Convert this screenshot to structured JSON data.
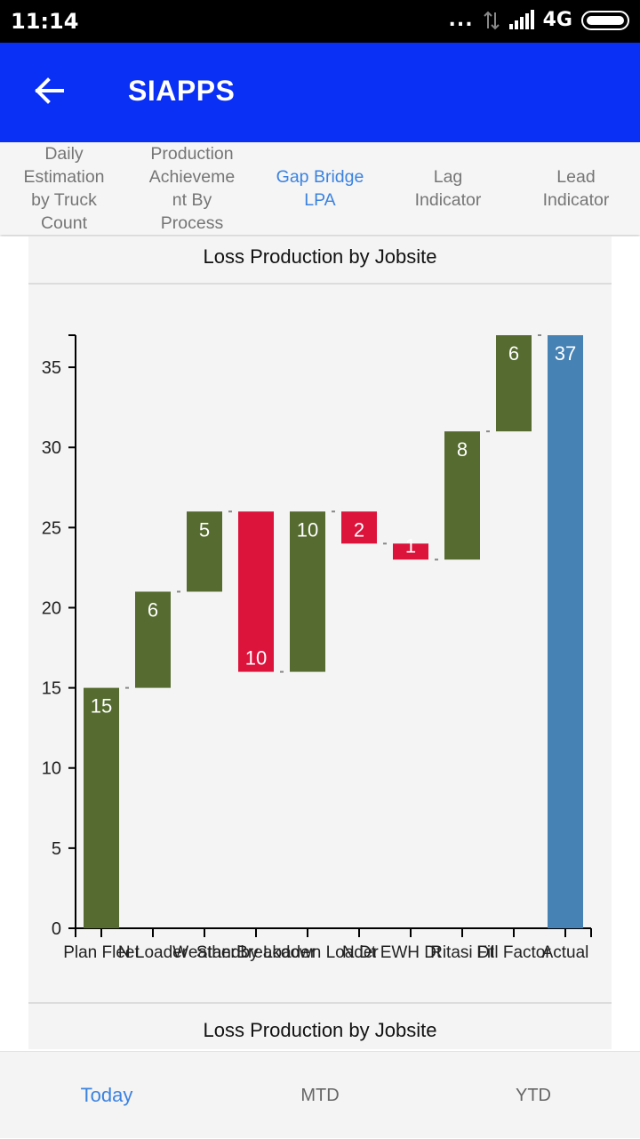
{
  "status_bar": {
    "time": "11:14",
    "dots": "...",
    "network": "4G"
  },
  "app_bar": {
    "title": "SIAPPS"
  },
  "tabs": [
    {
      "label": "Daily\nEstimation\nby Truck\nCount"
    },
    {
      "label": "Production\nAchieveme\nnt By\nProcess"
    },
    {
      "label": "Gap Bridge\nLPA"
    },
    {
      "label": "Lag\nIndicator"
    },
    {
      "label": "Lead\nIndicator"
    }
  ],
  "card": {
    "title": "Loss Production by Jobsite",
    "next_title": "Loss Production by Jobsite"
  },
  "chart_data": {
    "type": "waterfall",
    "title": "Loss Production by Jobsite",
    "ylim": [
      0,
      37
    ],
    "yticks": [
      0,
      5,
      10,
      15,
      20,
      25,
      30,
      35
    ],
    "colors": {
      "gain": "#556b2f",
      "loss": "#dc143c",
      "total": "#4682b4"
    },
    "bars": [
      {
        "category": "Plan Fleet",
        "start": 0,
        "end": 15,
        "label": "15",
        "kind": "gain"
      },
      {
        "category": "N Loader",
        "start": 15,
        "end": 21,
        "label": "6",
        "kind": "gain"
      },
      {
        "category": "Weather",
        "start": 21,
        "end": 26,
        "label": "5",
        "kind": "gain"
      },
      {
        "category": "Standby Loader",
        "start": 26,
        "end": 16,
        "label": "10",
        "kind": "loss"
      },
      {
        "category": "Breakdown Loader",
        "start": 16,
        "end": 26,
        "label": "10",
        "kind": "gain"
      },
      {
        "category": "N Dt",
        "start": 26,
        "end": 24,
        "label": "2",
        "kind": "loss"
      },
      {
        "category": "EWH Dt",
        "start": 24,
        "end": 23,
        "label": "1",
        "kind": "loss"
      },
      {
        "category": "Ritasi Dt",
        "start": 23,
        "end": 31,
        "label": "8",
        "kind": "gain"
      },
      {
        "category": "Fill Factor",
        "start": 31,
        "end": 37,
        "label": "6",
        "kind": "gain"
      },
      {
        "category": "Actual",
        "start": 0,
        "end": 37,
        "label": "37",
        "kind": "total"
      }
    ]
  },
  "bottom_nav": [
    {
      "label": "Today"
    },
    {
      "label": "MTD"
    },
    {
      "label": "YTD"
    }
  ]
}
